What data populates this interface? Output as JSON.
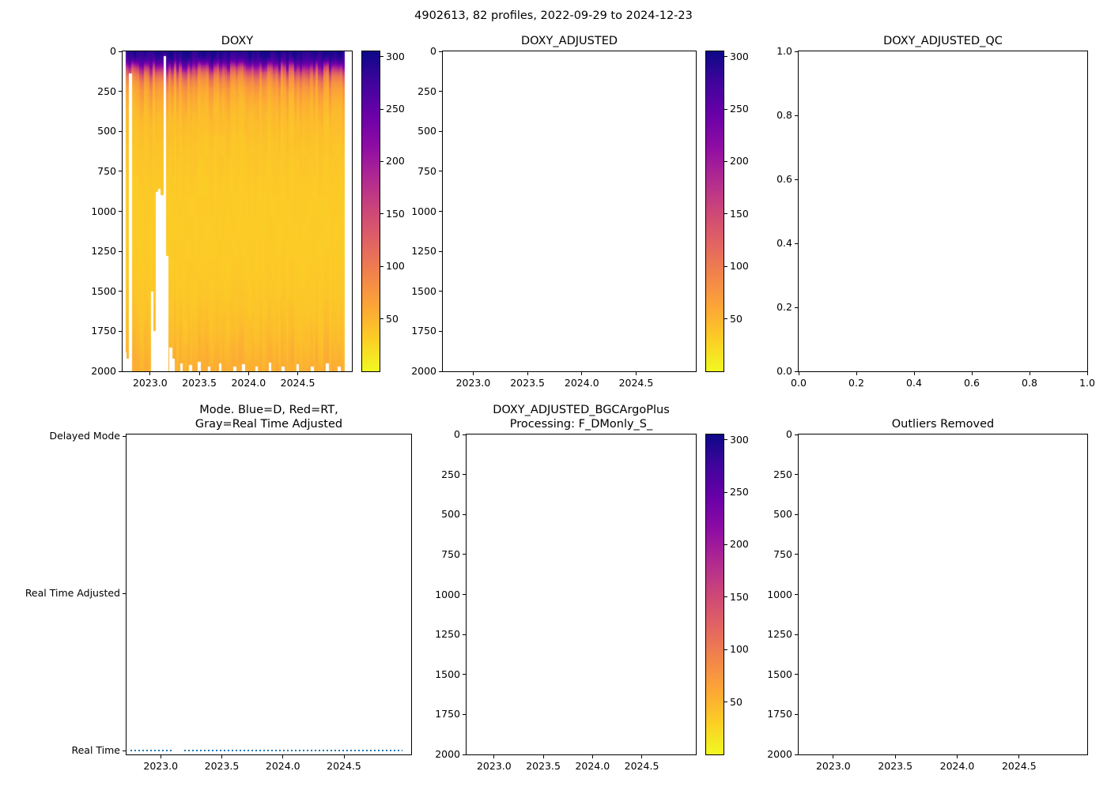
{
  "figure": {
    "title": "4902613, 82 profiles, 2022-09-29 to 2024-12-23"
  },
  "colormap": {
    "name": "plasma_r",
    "stops_dark_to_yellow": [
      "#0d0887",
      "#41049d",
      "#6a00a8",
      "#8f0da4",
      "#b12a90",
      "#cc4778",
      "#e16462",
      "#f2844b",
      "#fca636",
      "#fcce25",
      "#f0f921"
    ],
    "vmin": 0,
    "vmax": 305,
    "colorbar_tick_labels": [
      "50",
      "100",
      "150",
      "200",
      "250",
      "300"
    ]
  },
  "chart_data": [
    {
      "type": "heatmap",
      "title": "DOXY",
      "xlim": [
        2022.72,
        2025.05
      ],
      "ylim": [
        0,
        2000
      ],
      "x_tick_values": [
        2023.0,
        2023.5,
        2024.0,
        2024.5
      ],
      "x_tick_labels": [
        "2023.0",
        "2023.5",
        "2024.0",
        "2024.5"
      ],
      "y_tick_values": [
        0,
        250,
        500,
        750,
        1000,
        1250,
        1500,
        1750,
        2000
      ],
      "y_tick_labels": [
        "0",
        "250",
        "500",
        "750",
        "1000",
        "1250",
        "1500",
        "1750",
        "2000"
      ],
      "colormap": "plasma_r",
      "vmin": 0,
      "vmax": 305,
      "colorbar_tick_values": [
        50,
        100,
        150,
        200,
        250,
        300
      ],
      "colorbar_tick_labels": [
        "50",
        "100",
        "150",
        "200",
        "250",
        "300"
      ],
      "n_profiles": 82,
      "time_start": 2022.75,
      "time_end": 2024.98,
      "profile_depths": [
        0,
        40,
        70,
        90,
        110,
        130,
        160,
        200,
        250,
        300,
        400,
        600,
        900,
        1300,
        1600,
        1800,
        2000
      ],
      "profile_values": [
        295,
        282,
        255,
        215,
        175,
        140,
        105,
        80,
        65,
        55,
        45,
        38,
        33,
        33,
        37,
        44,
        56
      ],
      "missing_columns": [
        {
          "x": 2022.75,
          "from_depth": 1880
        },
        {
          "x": 2022.775,
          "from_depth": 1920
        },
        {
          "x": 2022.8,
          "from_depth": 140
        },
        {
          "x": 2023.02,
          "from_depth": 1500
        },
        {
          "x": 2023.045,
          "from_depth": 1750
        },
        {
          "x": 2023.07,
          "from_depth": 880
        },
        {
          "x": 2023.095,
          "from_depth": 860
        },
        {
          "x": 2023.12,
          "from_depth": 900
        },
        {
          "x": 2023.148,
          "from_depth": 30
        },
        {
          "x": 2023.175,
          "from_depth": 1280
        },
        {
          "x": 2023.21,
          "from_depth": 1850
        },
        {
          "x": 2023.235,
          "from_depth": 1920
        },
        {
          "x": 2023.32,
          "from_depth": 1950
        },
        {
          "x": 2023.41,
          "from_depth": 1962
        },
        {
          "x": 2023.5,
          "from_depth": 1940
        },
        {
          "x": 2023.6,
          "from_depth": 1968
        },
        {
          "x": 2023.71,
          "from_depth": 1950
        },
        {
          "x": 2023.86,
          "from_depth": 1972
        },
        {
          "x": 2023.95,
          "from_depth": 1955
        },
        {
          "x": 2024.08,
          "from_depth": 1968
        },
        {
          "x": 2024.22,
          "from_depth": 1945
        },
        {
          "x": 2024.35,
          "from_depth": 1972
        },
        {
          "x": 2024.5,
          "from_depth": 1958
        },
        {
          "x": 2024.65,
          "from_depth": 1972
        },
        {
          "x": 2024.8,
          "from_depth": 1950
        },
        {
          "x": 2024.92,
          "from_depth": 1968
        }
      ]
    },
    {
      "type": "heatmap",
      "title": "DOXY_ADJUSTED",
      "empty": true,
      "xlim": [
        2022.72,
        2025.05
      ],
      "ylim": [
        0,
        2000
      ],
      "x_tick_values": [
        2023.0,
        2023.5,
        2024.0,
        2024.5
      ],
      "x_tick_labels": [
        "2023.0",
        "2023.5",
        "2024.0",
        "2024.5"
      ],
      "y_tick_values": [
        0,
        250,
        500,
        750,
        1000,
        1250,
        1500,
        1750,
        2000
      ],
      "y_tick_labels": [
        "0",
        "250",
        "500",
        "750",
        "1000",
        "1250",
        "1500",
        "1750",
        "2000"
      ],
      "vmin": 0,
      "vmax": 305,
      "colorbar_tick_values": [
        50,
        100,
        150,
        200,
        250,
        300
      ],
      "colorbar_tick_labels": [
        "50",
        "100",
        "150",
        "200",
        "250",
        "300"
      ]
    },
    {
      "type": "scatter",
      "title": "DOXY_ADJUSTED_QC",
      "empty": true,
      "xlim": [
        0,
        1
      ],
      "ylim": [
        1,
        0
      ],
      "x_tick_values": [
        0,
        0.2,
        0.4,
        0.6,
        0.8,
        1.0
      ],
      "x_tick_labels": [
        "0.0",
        "0.2",
        "0.4",
        "0.6",
        "0.8",
        "1.0"
      ],
      "y_tick_values": [
        1.0,
        0.8,
        0.6,
        0.4,
        0.2,
        0.0
      ],
      "y_tick_labels": [
        "1.0",
        "0.8",
        "0.6",
        "0.4",
        "0.2",
        "0.0"
      ]
    },
    {
      "type": "line",
      "title": "Mode. Blue=D, Red=RT,\nGray=Real Time Adjusted",
      "title_line1": "Mode. Blue=D, Red=RT,",
      "title_line2": "Gray=Real Time Adjusted",
      "xlim": [
        2022.72,
        2025.05
      ],
      "x_tick_values": [
        2023.0,
        2023.5,
        2024.0,
        2024.5
      ],
      "x_tick_labels": [
        "2023.0",
        "2023.5",
        "2024.0",
        "2024.5"
      ],
      "y_categories": [
        "Delayed Mode",
        "Real Time Adjusted",
        "Real Time"
      ],
      "series": [
        {
          "name": "mode",
          "color": "#1f77b4",
          "linestyle": "dotted",
          "y_category": "Real Time",
          "x_start": 2022.75,
          "x_end": 2024.98,
          "gaps": [
            [
              2023.1,
              2023.19
            ]
          ]
        }
      ]
    },
    {
      "type": "heatmap",
      "title": "DOXY_ADJUSTED_BGCArgoPlus\nProcessing: F_DMonly_S_",
      "title_line1": "DOXY_ADJUSTED_BGCArgoPlus",
      "title_line2": "Processing: F_DMonly_S_",
      "empty": true,
      "xlim": [
        2022.72,
        2025.05
      ],
      "ylim": [
        0,
        2000
      ],
      "x_tick_values": [
        2023.0,
        2023.5,
        2024.0,
        2024.5
      ],
      "x_tick_labels": [
        "2023.0",
        "2023.5",
        "2024.0",
        "2024.5"
      ],
      "y_tick_values": [
        0,
        250,
        500,
        750,
        1000,
        1250,
        1500,
        1750,
        2000
      ],
      "y_tick_labels": [
        "0",
        "250",
        "500",
        "750",
        "1000",
        "1250",
        "1500",
        "1750",
        "2000"
      ],
      "vmin": 0,
      "vmax": 305,
      "colorbar_tick_values": [
        50,
        100,
        150,
        200,
        250,
        300
      ],
      "colorbar_tick_labels": [
        "50",
        "100",
        "150",
        "200",
        "250",
        "300"
      ]
    },
    {
      "type": "scatter",
      "title": "Outliers Removed",
      "empty": true,
      "xlim": [
        2022.72,
        2025.05
      ],
      "ylim": [
        0,
        2000
      ],
      "x_tick_values": [
        2023.0,
        2023.5,
        2024.0,
        2024.5
      ],
      "x_tick_labels": [
        "2023.0",
        "2023.5",
        "2024.0",
        "2024.5"
      ],
      "y_tick_values": [
        0,
        250,
        500,
        750,
        1000,
        1250,
        1500,
        1750,
        2000
      ],
      "y_tick_labels": [
        "0",
        "250",
        "500",
        "750",
        "1000",
        "1250",
        "1500",
        "1750",
        "2000"
      ]
    }
  ]
}
